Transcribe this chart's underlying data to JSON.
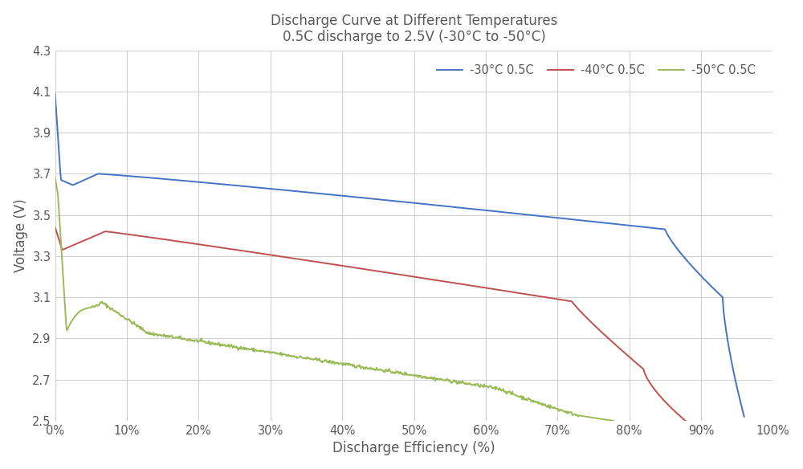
{
  "title_line1": "Discharge Curve at Different Temperatures",
  "title_line2": "0.5C discharge to 2.5V (-30°C to -50°C)",
  "xlabel": "Discharge Efficiency (%)",
  "ylabel": "Voltage (V)",
  "xlim": [
    0,
    1.0
  ],
  "ylim": [
    2.5,
    4.3
  ],
  "yticks": [
    2.5,
    2.7,
    2.9,
    3.1,
    3.3,
    3.5,
    3.7,
    3.9,
    4.1,
    4.3
  ],
  "xticks": [
    0,
    0.1,
    0.2,
    0.3,
    0.4,
    0.5,
    0.6,
    0.7,
    0.8,
    0.9,
    1.0
  ],
  "color_30": "#4472C4",
  "color_40": "#C0504D",
  "color_50": "#9BBB59",
  "label_30": "-30°C 0.5C",
  "label_40": "-40°C 0.5C",
  "label_50": "-50°C 0.5C",
  "background_color": "#FFFFFF",
  "grid_color": "#D0D0D0",
  "title_color": "#595959",
  "axis_label_color": "#595959",
  "tick_color": "#595959",
  "font_family": "Georgia"
}
